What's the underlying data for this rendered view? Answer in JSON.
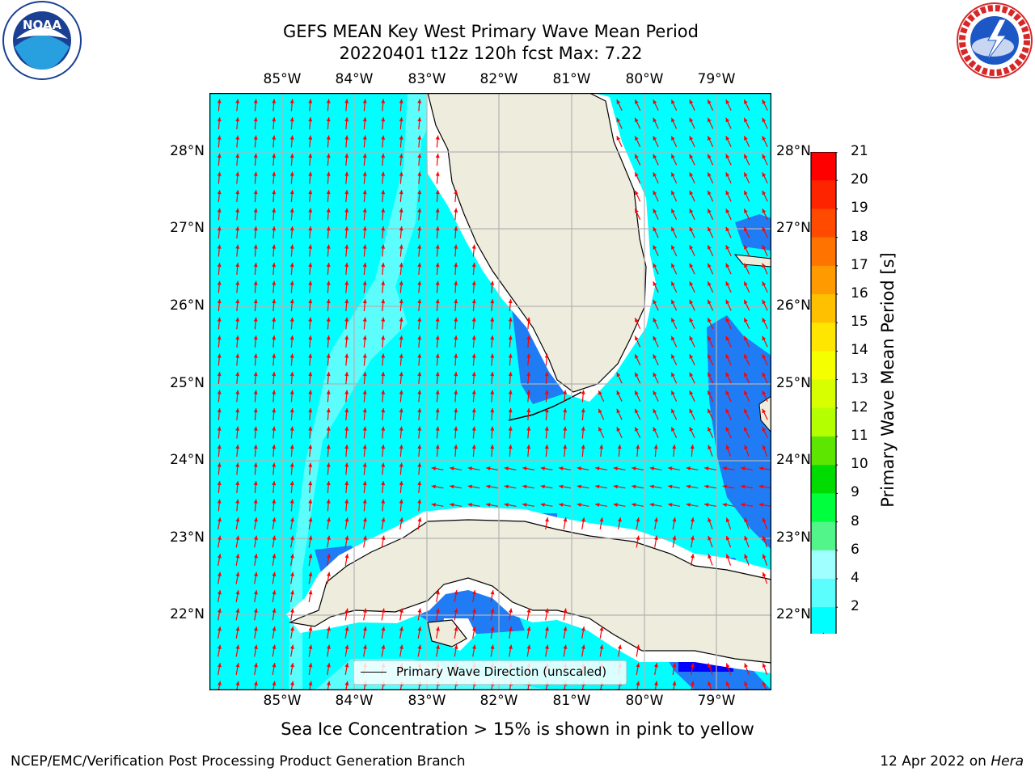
{
  "title": {
    "line1": "GEFS MEAN Key West Primary Wave Mean Period",
    "line2": "20220401 t12z 120h fcst   Max: 7.22"
  },
  "map": {
    "lon_ticks": [
      "85°W",
      "84°W",
      "83°W",
      "82°W",
      "81°W",
      "80°W",
      "79°W"
    ],
    "lat_ticks": [
      "28°N",
      "27°N",
      "26°N",
      "25°N",
      "24°N",
      "23°N",
      "22°N"
    ],
    "colors": {
      "land": "#eeecdc",
      "coast": "#000000",
      "grid": "#b3b3b3",
      "arrow": "#ff0000",
      "period_2_4": "#1f7cf5",
      "period_4_6": "#00ffff",
      "period_6_8": "#5cfdfd"
    },
    "legend": "Primary Wave Direction (unscaled)"
  },
  "colorbar": {
    "label": "Primary Wave Mean Period [s]",
    "ticks": [
      "21",
      "20",
      "19",
      "18",
      "17",
      "16",
      "15",
      "14",
      "13",
      "12",
      "11",
      "10",
      "9",
      "8",
      "6",
      "4",
      "2"
    ],
    "colors": [
      "#ff0000",
      "#ff2400",
      "#ff4a00",
      "#ff7400",
      "#ff9a00",
      "#ffc000",
      "#ffe600",
      "#f5ff00",
      "#d8ff00",
      "#b4ff00",
      "#5ce600",
      "#00dc00",
      "#00ff3c",
      "#52f58a",
      "#a0ffff",
      "#5cfdfd",
      "#00ffff",
      "#1f7cf5"
    ],
    "underflow_color": "#0000ff"
  },
  "note": "Sea Ice Concentration > 15% is shown in pink to yellow",
  "footer": {
    "left": "NCEP/EMC/Verification Post Processing Product Generation Branch",
    "right_date": "12 Apr 2022 on ",
    "right_host": "Hera"
  }
}
